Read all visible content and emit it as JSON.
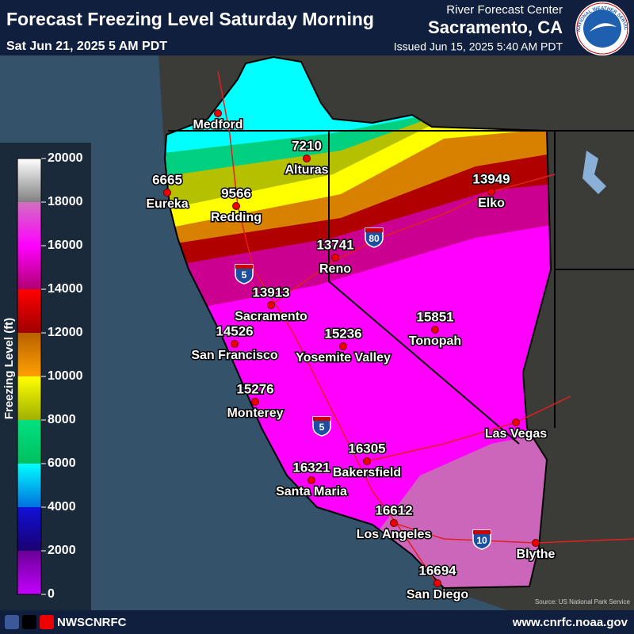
{
  "header": {
    "title": "Forecast Freezing Level Saturday Morning",
    "valid_time": "Sat Jun 21, 2025 5 AM PDT",
    "office": "River Forecast Center",
    "location": "Sacramento, CA",
    "issued": "Issued Jun 15, 2025 5:40 AM PDT",
    "logo_text": "NATIONAL WEATHER SERVICE"
  },
  "legend": {
    "title": "Freezing Level (ft)",
    "ticks": [
      0,
      2000,
      4000,
      6000,
      8000,
      10000,
      12000,
      14000,
      16000,
      18000,
      20000
    ]
  },
  "cities": [
    {
      "name": "Medford"
    },
    {
      "name": "Alturas",
      "value": 7210
    },
    {
      "name": "Eureka",
      "value": 6665
    },
    {
      "name": "Redding",
      "value": 9566
    },
    {
      "name": "Elko",
      "value": 13949
    },
    {
      "name": "Reno",
      "value": 13741
    },
    {
      "name": "Sacramento",
      "value": 13913
    },
    {
      "name": "San Francisco",
      "value": 14526
    },
    {
      "name": "Yosemite Valley",
      "value": 15236
    },
    {
      "name": "Tonopah",
      "value": 15851
    },
    {
      "name": "Monterey",
      "value": 15276
    },
    {
      "name": "Las Vegas"
    },
    {
      "name": "Bakersfield",
      "value": 16305
    },
    {
      "name": "Santa Maria",
      "value": 16321
    },
    {
      "name": "Los Angeles",
      "value": 16612
    },
    {
      "name": "Blythe"
    },
    {
      "name": "San Diego",
      "value": 16694
    }
  ],
  "highways": [
    "5",
    "80",
    "5",
    "10"
  ],
  "source": "Source: US National Park Service",
  "footer": {
    "social": "NWSCNRFC",
    "url": "www.cnrfc.noaa.gov"
  }
}
